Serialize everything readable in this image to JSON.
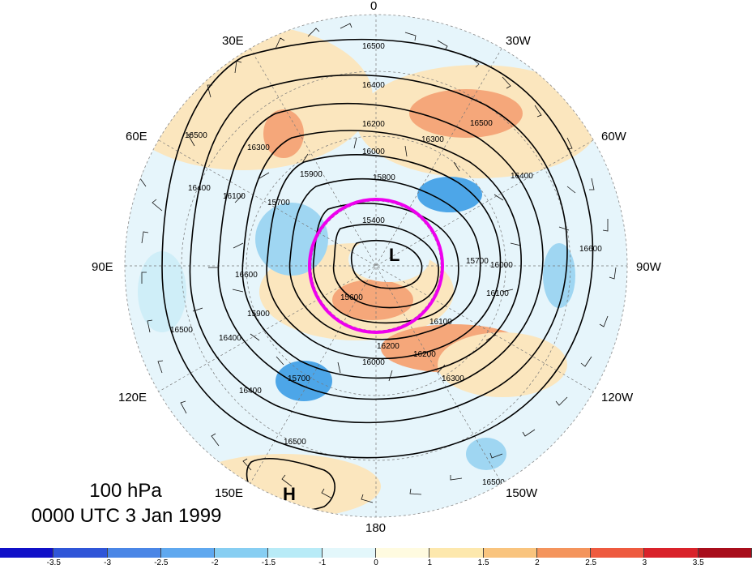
{
  "map": {
    "longitude_labels": [
      "0",
      "30W",
      "60W",
      "90W",
      "120W",
      "150W",
      "180",
      "150E",
      "120E",
      "90E",
      "60E",
      "30E"
    ],
    "contour_labels": [
      "16500",
      "16400",
      "16200",
      "16300",
      "16000",
      "16500",
      "16300",
      "16100",
      "15900",
      "15800",
      "15700",
      "15400",
      "16500",
      "16400",
      "16600",
      "16400",
      "16000",
      "15600",
      "15900",
      "15700",
      "16100",
      "16200",
      "16300",
      "16500",
      "16600",
      "16400",
      "16200",
      "16000",
      "16100",
      "16400",
      "15700",
      "16500",
      "16500"
    ],
    "low_marker": "L",
    "high_marker": "H",
    "colors": {
      "ocean_base": "#e6f5fb",
      "warm": "#f5a77a",
      "warm_light": "#fbe6be",
      "cold": "#9fd6f2",
      "cold_dark": "#4da6e8",
      "circle": "#ee00ee"
    }
  },
  "caption": {
    "level": "100 hPa",
    "time": "0000 UTC 3 Jan 1999"
  },
  "colorbar": {
    "colors": [
      "#1010c8",
      "#2f55d8",
      "#4a86e6",
      "#5fa8ef",
      "#87cef2",
      "#b8ebf7",
      "#e3f7fb",
      "#fffbe0",
      "#fde8ad",
      "#f9c47e",
      "#f4945c",
      "#ee5a3f",
      "#d9222a",
      "#a80d1b"
    ],
    "tick_labels": [
      "-3.5",
      "-3",
      "-2.5",
      "-2",
      "-1.5",
      "-1",
      "0",
      "1",
      "1.5",
      "2",
      "2.5",
      "3",
      "3.5"
    ]
  }
}
